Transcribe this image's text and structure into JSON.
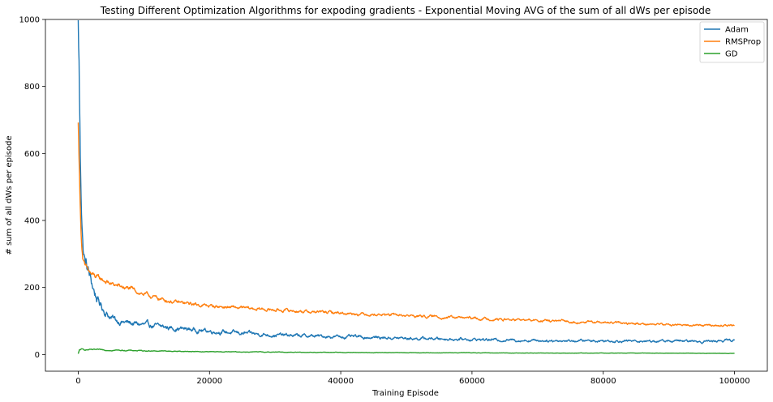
{
  "chart_data": {
    "type": "line",
    "title": "Testing Different Optimization Algorithms for expoding gradients - Exponential Moving AVG of the sum of all dWs per episode",
    "xlabel": "Training Episode",
    "ylabel": "# sum of all dWs per episode",
    "xlim": [
      -5000,
      105000
    ],
    "ylim": [
      -50,
      1000
    ],
    "xticks": [
      0,
      20000,
      40000,
      60000,
      80000,
      100000
    ],
    "yticks": [
      0,
      200,
      400,
      600,
      800,
      1000
    ],
    "grid": false,
    "legend_position": "top-right",
    "series": [
      {
        "name": "Adam",
        "color": "#1f77b4",
        "x": [
          0,
          100,
          200,
          300,
          500,
          700,
          1000,
          1500,
          2000,
          2500,
          3000,
          4000,
          5000,
          6000,
          8000,
          10000,
          12000,
          15000,
          20000,
          25000,
          30000,
          35000,
          40000,
          45000,
          50000,
          55000,
          60000,
          65000,
          70000,
          75000,
          80000,
          85000,
          90000,
          95000,
          100000
        ],
        "y": [
          975,
          900,
          750,
          600,
          450,
          330,
          280,
          250,
          215,
          185,
          160,
          130,
          110,
          100,
          93,
          88,
          84,
          78,
          70,
          63,
          58,
          55,
          53,
          51,
          48,
          47,
          45,
          43,
          42,
          41,
          41,
          40,
          40,
          39,
          43
        ]
      },
      {
        "name": "RMSProp",
        "color": "#ff7f0e",
        "x": [
          0,
          100,
          200,
          300,
          500,
          700,
          1000,
          1500,
          2000,
          3000,
          4000,
          5000,
          6000,
          8000,
          10000,
          12000,
          15000,
          20000,
          25000,
          30000,
          35000,
          40000,
          45000,
          50000,
          55000,
          60000,
          65000,
          70000,
          75000,
          80000,
          85000,
          90000,
          95000,
          100000
        ],
        "y": [
          685,
          620,
          530,
          440,
          340,
          290,
          262,
          250,
          238,
          228,
          220,
          210,
          205,
          195,
          180,
          168,
          155,
          145,
          138,
          133,
          128,
          124,
          120,
          116,
          112,
          108,
          104,
          101,
          98,
          95,
          92,
          89,
          87,
          86
        ]
      },
      {
        "name": "GD",
        "color": "#2ca02c",
        "x": [
          0,
          200,
          500,
          1000,
          2000,
          5000,
          10000,
          20000,
          30000,
          40000,
          50000,
          60000,
          70000,
          80000,
          90000,
          100000
        ],
        "y": [
          2,
          14,
          15,
          14,
          14,
          13,
          11,
          8,
          7,
          6,
          5,
          5,
          4,
          4,
          4,
          3
        ]
      }
    ]
  }
}
